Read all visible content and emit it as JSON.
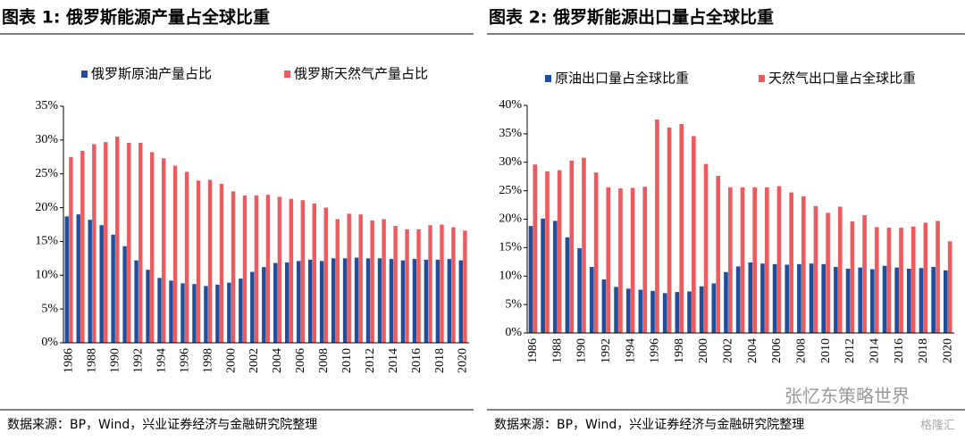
{
  "chart_data": [
    {
      "type": "bar",
      "title": "图表 1:  俄罗斯能源产量占全球比重",
      "source": "数据来源：BP，Wind，兴业证券经济与金融研究院整理",
      "categories": [
        "1986",
        null,
        "1988",
        null,
        "1990",
        null,
        "1992",
        null,
        "1994",
        null,
        "1996",
        null,
        "1998",
        null,
        "2000",
        null,
        "2002",
        null,
        "2004",
        null,
        "2006",
        null,
        "2008",
        null,
        "2010",
        null,
        "2012",
        null,
        "2014",
        null,
        "2016",
        null,
        "2018",
        null,
        "2020"
      ],
      "series": [
        {
          "name": "俄罗斯原油产量占比",
          "color": "#1f4e9c",
          "values": [
            18.7,
            19.0,
            18.2,
            17.4,
            16.0,
            14.3,
            12.2,
            10.8,
            9.6,
            9.2,
            8.8,
            8.7,
            8.4,
            8.6,
            8.9,
            9.5,
            10.5,
            11.2,
            11.8,
            11.9,
            12.1,
            12.3,
            12.1,
            12.5,
            12.5,
            12.6,
            12.5,
            12.5,
            12.4,
            12.2,
            12.4,
            12.3,
            12.3,
            12.4,
            12.2
          ]
        },
        {
          "name": "俄罗斯天然气产量占比",
          "color": "#ee5b5e",
          "values": [
            27.5,
            28.4,
            29.4,
            29.7,
            30.5,
            29.6,
            29.6,
            28.2,
            27.3,
            26.2,
            25.3,
            24.0,
            24.1,
            23.5,
            22.4,
            21.8,
            21.8,
            21.9,
            21.6,
            21.3,
            21.1,
            20.6,
            20.0,
            18.3,
            19.1,
            19.0,
            18.1,
            18.3,
            17.3,
            16.8,
            16.8,
            17.4,
            17.5,
            17.1,
            16.6
          ]
        }
      ],
      "ylim": [
        0,
        35
      ],
      "yticks": [
        {
          "value": 0,
          "label": "0%"
        },
        {
          "value": 5,
          "label": "5%"
        },
        {
          "value": 10,
          "label": "10%"
        },
        {
          "value": 15,
          "label": "15%"
        },
        {
          "value": 20,
          "label": "20%"
        },
        {
          "value": 25,
          "label": "25%"
        },
        {
          "value": 30,
          "label": "30%"
        },
        {
          "value": 35,
          "label": "35%"
        }
      ]
    },
    {
      "type": "bar",
      "title": "图表 2:  俄罗斯能源出口量占全球比重",
      "source": "数据来源：BP，Wind，兴业证券经济与金融研究院整理",
      "categories": [
        "1986",
        null,
        "1988",
        null,
        "1990",
        null,
        "1992",
        null,
        "1994",
        null,
        "1996",
        null,
        "1998",
        null,
        "2000",
        null,
        "2002",
        null,
        "2004",
        null,
        "2006",
        null,
        "2008",
        null,
        "2010",
        null,
        "2012",
        null,
        "2014",
        null,
        "2016",
        null,
        "2018",
        null,
        "2020"
      ],
      "series": [
        {
          "name": "原油出口量占全球比重",
          "color": "#1f4e9c",
          "values": [
            18.8,
            20.1,
            19.7,
            16.8,
            14.9,
            11.6,
            9.4,
            8.1,
            7.8,
            7.6,
            7.4,
            7.0,
            7.2,
            7.3,
            8.2,
            8.7,
            10.7,
            11.7,
            12.4,
            12.2,
            12.1,
            12.0,
            12.1,
            12.2,
            12.1,
            11.6,
            11.3,
            11.5,
            11.2,
            11.8,
            11.5,
            11.3,
            11.4,
            11.6,
            11.0
          ]
        },
        {
          "name": "天然气出口量占全球比重",
          "color": "#ee5b5e",
          "values": [
            29.6,
            28.4,
            28.6,
            30.3,
            30.8,
            28.2,
            25.6,
            25.4,
            25.5,
            25.7,
            37.5,
            36.1,
            36.7,
            34.6,
            29.7,
            27.6,
            25.6,
            25.6,
            25.6,
            25.6,
            25.8,
            24.7,
            24.0,
            22.3,
            21.1,
            22.2,
            19.6,
            20.7,
            18.6,
            18.5,
            18.5,
            18.7,
            19.4,
            19.7,
            16.1
          ]
        }
      ],
      "ylim": [
        0,
        40
      ],
      "yticks": [
        {
          "value": 0,
          "label": "0%"
        },
        {
          "value": 5,
          "label": "5%"
        },
        {
          "value": 10,
          "label": "10%"
        },
        {
          "value": 15,
          "label": "15%"
        },
        {
          "value": 20,
          "label": "20%"
        },
        {
          "value": 25,
          "label": "25%"
        },
        {
          "value": 30,
          "label": "30%"
        },
        {
          "value": 35,
          "label": "35%"
        },
        {
          "value": 40,
          "label": "40%"
        }
      ]
    }
  ],
  "watermark": "张忆东策略世界",
  "logo": "格隆汇"
}
